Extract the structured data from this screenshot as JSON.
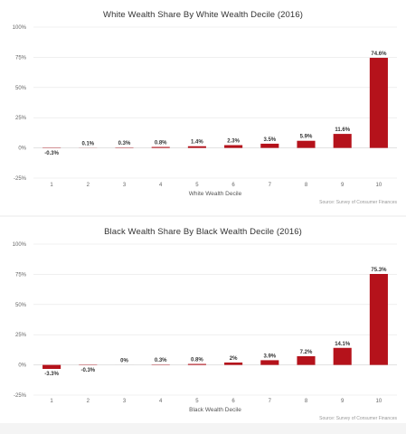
{
  "chart_data": [
    {
      "type": "bar",
      "title": "White Wealth Share By White Wealth Decile (2016)",
      "xlabel": "White Wealth Decile",
      "ylabel": "",
      "categories": [
        "1",
        "2",
        "3",
        "4",
        "5",
        "6",
        "7",
        "8",
        "9",
        "10"
      ],
      "values": [
        -0.3,
        0.1,
        0.3,
        0.8,
        1.4,
        2.3,
        3.5,
        5.9,
        11.6,
        74.6
      ],
      "data_labels": [
        "-0.3%",
        "0.1%",
        "0.3%",
        "0.8%",
        "1.4%",
        "2.3%",
        "3.5%",
        "5.9%",
        "11.6%",
        "74.6%"
      ],
      "ylim": [
        -25,
        100
      ],
      "yticks": [
        -25,
        0,
        25,
        50,
        75,
        100
      ],
      "ytick_labels": [
        "-25%",
        "0%",
        "25%",
        "50%",
        "75%",
        "100%"
      ],
      "bar_color": "#b5121b",
      "grid": true,
      "legend": "none",
      "credit": "Source: Survey of Consumer Finances"
    },
    {
      "type": "bar",
      "title": "Black Wealth Share By Black Wealth Decile (2016)",
      "xlabel": "Black Wealth Decile",
      "ylabel": "",
      "categories": [
        "1",
        "2",
        "3",
        "4",
        "5",
        "6",
        "7",
        "8",
        "9",
        "10"
      ],
      "values": [
        -3.3,
        -0.3,
        0,
        0.3,
        0.8,
        2,
        3.9,
        7.2,
        14.1,
        75.3
      ],
      "data_labels": [
        "-3.3%",
        "-0.3%",
        "0%",
        "0.3%",
        "0.8%",
        "2%",
        "3.9%",
        "7.2%",
        "14.1%",
        "75.3%"
      ],
      "ylim": [
        -25,
        100
      ],
      "yticks": [
        -25,
        0,
        25,
        50,
        75,
        100
      ],
      "ytick_labels": [
        "-25%",
        "0%",
        "25%",
        "50%",
        "75%",
        "100%"
      ],
      "bar_color": "#b5121b",
      "grid": true,
      "legend": "none",
      "credit": "Source: Survey of Consumer Finances"
    }
  ]
}
